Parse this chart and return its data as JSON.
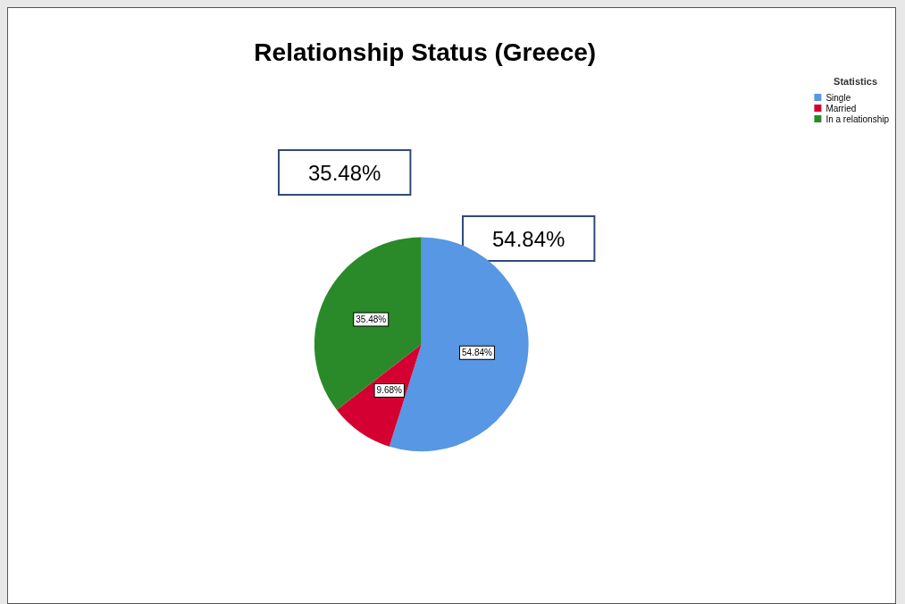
{
  "chart_data": {
    "type": "pie",
    "title": "Relationship Status (Greece)",
    "legend_title": "Statistics",
    "legend": "top right",
    "value_labels": [
      "54.84%",
      "9.68%",
      "35.48%"
    ],
    "categories": [
      "Single",
      "Married",
      "In a relationship"
    ],
    "values": [
      54.84,
      9.68,
      35.48
    ],
    "colors": [
      "#5797e3",
      "#d50032",
      "#2a8a2a"
    ],
    "annotations": [
      "35.48%",
      "54.84%"
    ]
  }
}
